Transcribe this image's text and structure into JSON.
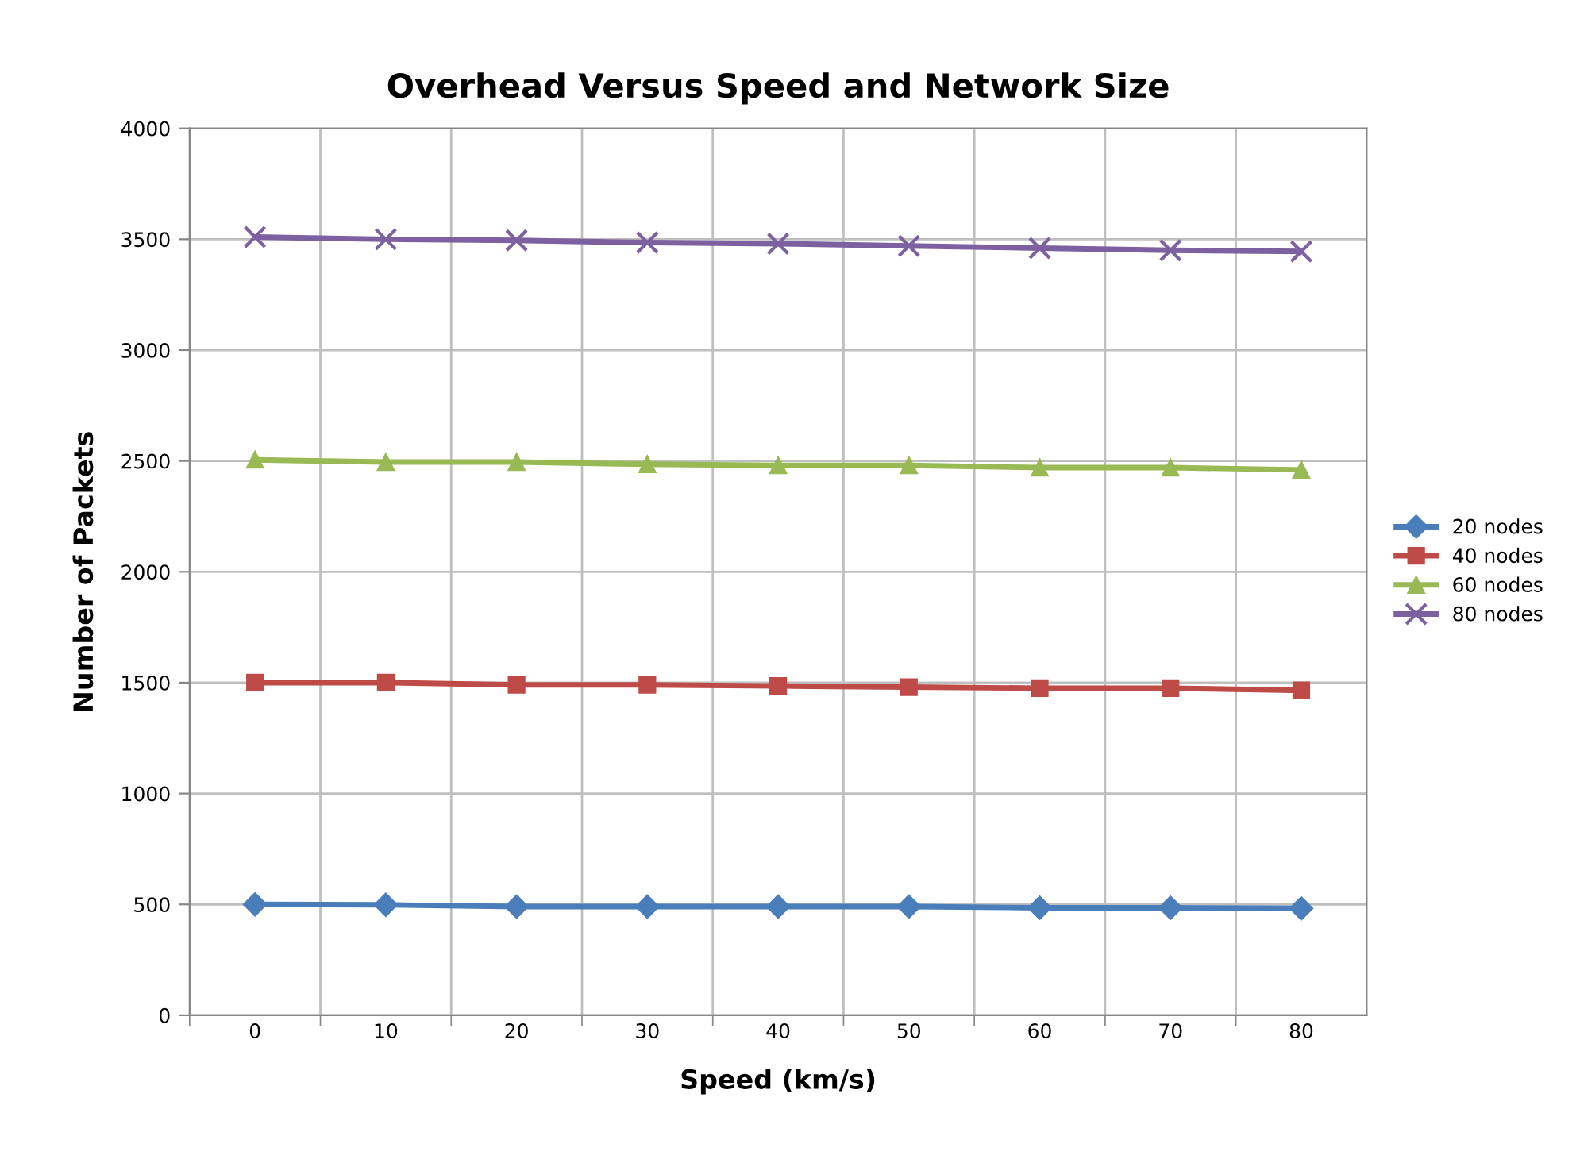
{
  "chart_data": {
    "type": "line",
    "title": "Overhead Versus Speed and Network Size",
    "xlabel": "Speed (km/s)",
    "ylabel": "Number of Packets",
    "categories": [
      "0",
      "10",
      "20",
      "30",
      "40",
      "50",
      "60",
      "70",
      "80"
    ],
    "series": [
      {
        "name": "20 nodes",
        "color": "#4a7ebb",
        "marker": "diamond",
        "values": [
          500,
          498,
          490,
          490,
          490,
          490,
          485,
          485,
          482
        ]
      },
      {
        "name": "40 nodes",
        "color": "#be4b48",
        "marker": "square",
        "values": [
          1500,
          1500,
          1490,
          1490,
          1485,
          1480,
          1475,
          1475,
          1465
        ]
      },
      {
        "name": "60 nodes",
        "color": "#98b954",
        "marker": "triangle",
        "values": [
          2505,
          2495,
          2495,
          2485,
          2480,
          2480,
          2470,
          2470,
          2460
        ]
      },
      {
        "name": "80 nodes",
        "color": "#7d60a0",
        "marker": "cross",
        "values": [
          3510,
          3500,
          3495,
          3485,
          3480,
          3470,
          3460,
          3450,
          3445
        ]
      }
    ],
    "ylim": [
      0,
      4000
    ],
    "yticks": [
      0,
      500,
      1000,
      1500,
      2000,
      2500,
      3000,
      3500,
      4000
    ],
    "grid": true,
    "legend": "right"
  }
}
